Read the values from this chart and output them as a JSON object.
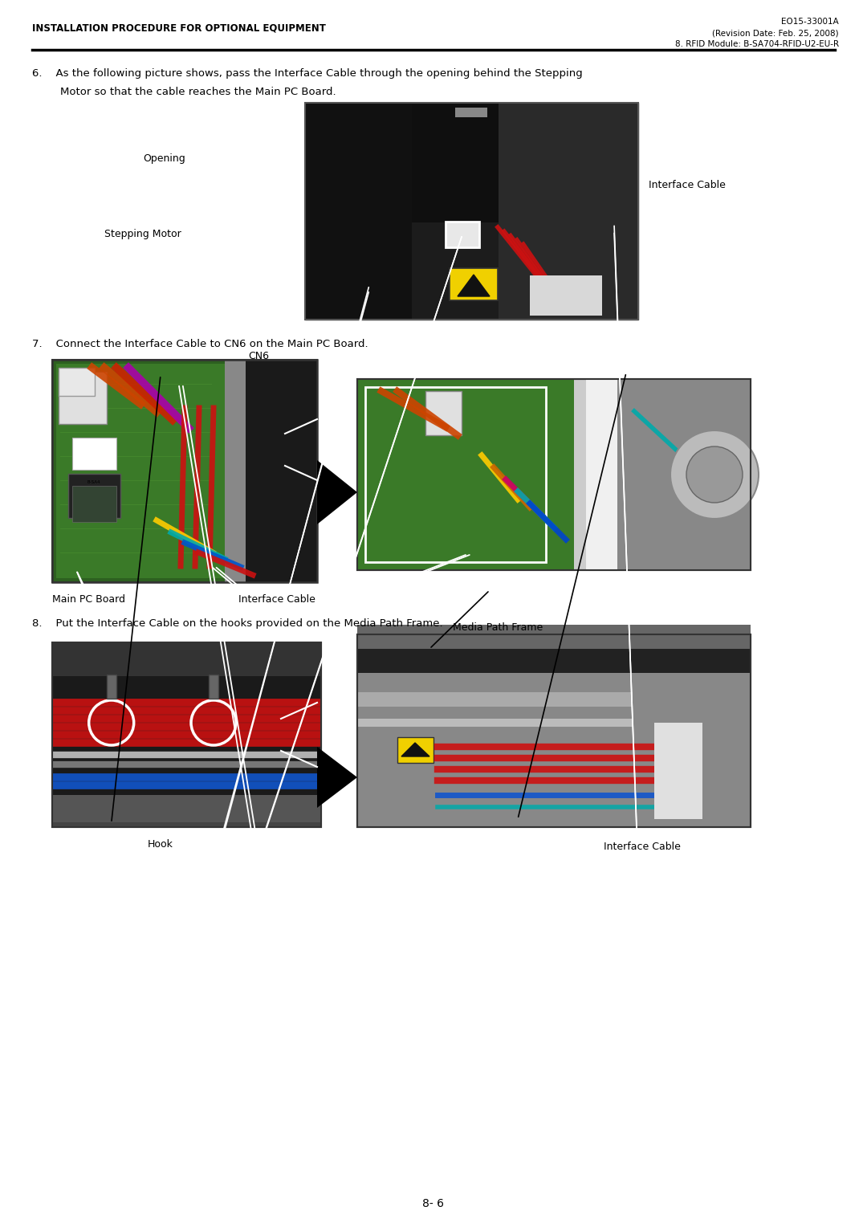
{
  "page_width": 10.8,
  "page_height": 15.28,
  "bg_color": "#ffffff",
  "header_left": "INSTALLATION PROCEDURE FOR OPTIONAL EQUIPMENT",
  "header_right_line1": "EO15-33001A",
  "header_right_line2": "(Revision Date: Feb. 25, 2008)",
  "header_right_line3": "8. RFID Module: B-SA704-RFID-U2-EU-R",
  "footer_text": "8- 6",
  "step6_line1": "6.    As the following picture shows, pass the Interface Cable through the opening behind the Stepping",
  "step6_line2": "Motor so that the cable reaches the Main PC Board.",
  "step7_text": "7.    Connect the Interface Cable to CN6 on the Main PC Board.",
  "step8_text": "8.    Put the Interface Cable on the hooks provided on the Media Path Frame.",
  "label_opening": "Opening",
  "label_interface_cable_6": "Interface Cable",
  "label_stepping_motor": "Stepping Motor",
  "label_cn6": "CN6",
  "label_main_pc_board": "Main PC Board",
  "label_interface_cable_7": "Interface Cable",
  "label_media_path_frame": "Media Path Frame",
  "label_hook": "Hook",
  "label_interface_cable_8": "Interface Cable",
  "header_font_size": 8.5,
  "body_font_size": 9.5,
  "label_font_size": 9.0
}
